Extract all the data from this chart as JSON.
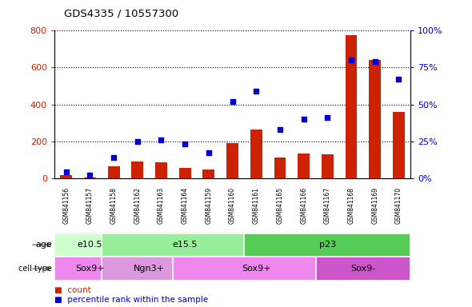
{
  "title": "GDS4335 / 10557300",
  "samples": [
    "GSM841156",
    "GSM841157",
    "GSM841158",
    "GSM841162",
    "GSM841163",
    "GSM841164",
    "GSM841159",
    "GSM841160",
    "GSM841161",
    "GSM841165",
    "GSM841166",
    "GSM841167",
    "GSM841168",
    "GSM841169",
    "GSM841170"
  ],
  "counts": [
    15,
    5,
    65,
    90,
    85,
    55,
    45,
    190,
    265,
    110,
    135,
    130,
    775,
    640,
    360
  ],
  "percentile": [
    4,
    2,
    14,
    25,
    26,
    23,
    17,
    52,
    59,
    33,
    40,
    41,
    80,
    79,
    67
  ],
  "age_groups": [
    {
      "label": "e10.5",
      "start": 0,
      "end": 2,
      "color": "#ccffcc"
    },
    {
      "label": "e15.5",
      "start": 2,
      "end": 8,
      "color": "#99ee99"
    },
    {
      "label": "p23",
      "start": 8,
      "end": 14,
      "color": "#55cc55"
    }
  ],
  "cell_type_groups": [
    {
      "label": "Sox9+",
      "start": 0,
      "end": 2,
      "color": "#ee88ee"
    },
    {
      "label": "Ngn3+",
      "start": 2,
      "end": 5,
      "color": "#dd99dd"
    },
    {
      "label": "Sox9+",
      "start": 5,
      "end": 11,
      "color": "#ee88ee"
    },
    {
      "label": "Sox9-",
      "start": 11,
      "end": 14,
      "color": "#cc55cc"
    }
  ],
  "bar_color": "#cc2200",
  "dot_color": "#0000cc",
  "ylim_left": [
    0,
    800
  ],
  "ylim_right": [
    0,
    100
  ],
  "yticks_left": [
    0,
    200,
    400,
    600,
    800
  ],
  "yticks_right": [
    0,
    25,
    50,
    75,
    100
  ],
  "ytick_labels_right": [
    "0%",
    "25%",
    "50%",
    "75%",
    "100%"
  ],
  "background_color": "#ffffff",
  "plot_bg_color": "#ffffff",
  "xlabel_bg_color": "#cccccc",
  "legend_items": [
    {
      "label": "count",
      "color": "#cc2200"
    },
    {
      "label": "percentile rank within the sample",
      "color": "#0000cc"
    }
  ]
}
